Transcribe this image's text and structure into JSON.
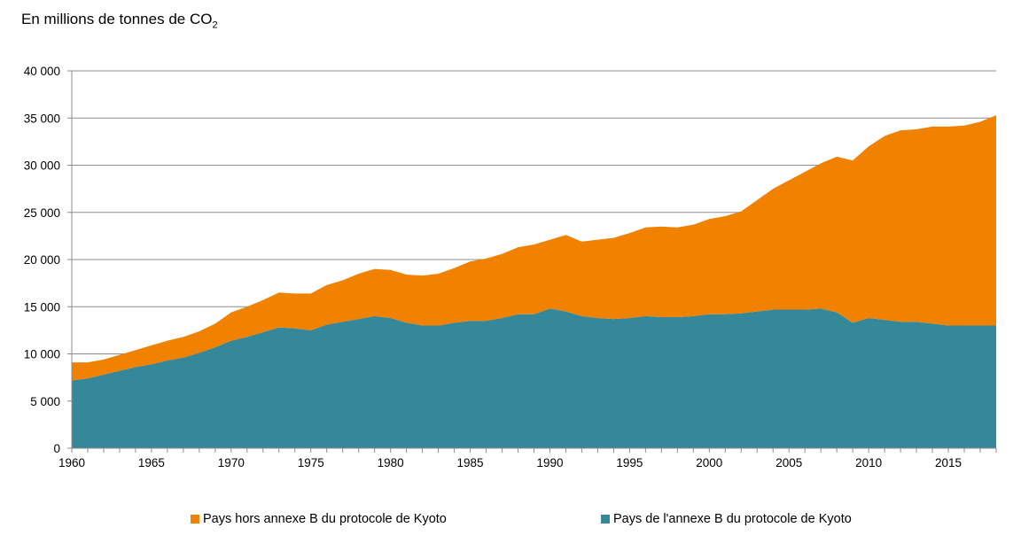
{
  "chart_data": {
    "type": "area",
    "stacked": true,
    "title": "En millions de tonnes de CO",
    "title_subscript": "2",
    "xlabel": "",
    "ylabel": "En millions de tonnes de CO2",
    "ylim": [
      0,
      40000
    ],
    "xlim": [
      1960,
      2018
    ],
    "grid": true,
    "legend_position": "bottom",
    "yticks": [
      0,
      5000,
      10000,
      15000,
      20000,
      25000,
      30000,
      35000,
      40000
    ],
    "ytick_labels": [
      "0",
      "5 000",
      "10 000",
      "15 000",
      "20 000",
      "25 000",
      "30 000",
      "35 000",
      "40 000"
    ],
    "xticks": [
      1960,
      1965,
      1970,
      1975,
      1980,
      1985,
      1990,
      1995,
      2000,
      2005,
      2010,
      2015
    ],
    "xtick_labels": [
      "1960",
      "1965",
      "1970",
      "1975",
      "1980",
      "1985",
      "1990",
      "1995",
      "2000",
      "2005",
      "2010",
      "2015"
    ],
    "x": [
      1960,
      1961,
      1962,
      1963,
      1964,
      1965,
      1966,
      1967,
      1968,
      1969,
      1970,
      1971,
      1972,
      1973,
      1974,
      1975,
      1976,
      1977,
      1978,
      1979,
      1980,
      1981,
      1982,
      1983,
      1984,
      1985,
      1986,
      1987,
      1988,
      1989,
      1990,
      1991,
      1992,
      1993,
      1994,
      1995,
      1996,
      1997,
      1998,
      1999,
      2000,
      2001,
      2002,
      2003,
      2004,
      2005,
      2006,
      2007,
      2008,
      2009,
      2010,
      2011,
      2012,
      2013,
      2014,
      2015,
      2016,
      2017,
      2018
    ],
    "series": [
      {
        "name": "Pays de l'annexe B du protocole de Kyoto",
        "color": "#35879a",
        "values": [
          7200,
          7400,
          7800,
          8200,
          8600,
          8900,
          9300,
          9600,
          10100,
          10700,
          11400,
          11800,
          12300,
          12800,
          12700,
          12500,
          13100,
          13400,
          13700,
          14000,
          13800,
          13300,
          13000,
          13000,
          13300,
          13500,
          13500,
          13800,
          14200,
          14200,
          14800,
          14500,
          14000,
          13800,
          13700,
          13800,
          14000,
          13900,
          13900,
          14000,
          14200,
          14200,
          14300,
          14500,
          14700,
          14700,
          14700,
          14800,
          14400,
          13300,
          13800,
          13600,
          13400,
          13400,
          13200,
          13000,
          13000,
          13000,
          13000
        ]
      },
      {
        "name": "Pays hors annexe B du protocole de Kyoto",
        "color": "#f08200",
        "values": [
          1900,
          1700,
          1600,
          1700,
          1800,
          2000,
          2100,
          2200,
          2300,
          2500,
          3000,
          3200,
          3400,
          3700,
          3700,
          3900,
          4200,
          4400,
          4800,
          5000,
          5100,
          5100,
          5300,
          5500,
          5800,
          6300,
          6600,
          6800,
          7100,
          7400,
          7300,
          8100,
          7900,
          8300,
          8600,
          9000,
          9400,
          9600,
          9500,
          9700,
          10100,
          10400,
          10800,
          11800,
          12800,
          13700,
          14600,
          15400,
          16500,
          17200,
          18200,
          19500,
          20300,
          20400,
          20900,
          21100,
          21200,
          21600,
          22300
        ]
      }
    ],
    "legend": [
      "Pays hors annexe B du protocole de Kyoto",
      "Pays de l'annexe B du protocole de Kyoto"
    ]
  }
}
